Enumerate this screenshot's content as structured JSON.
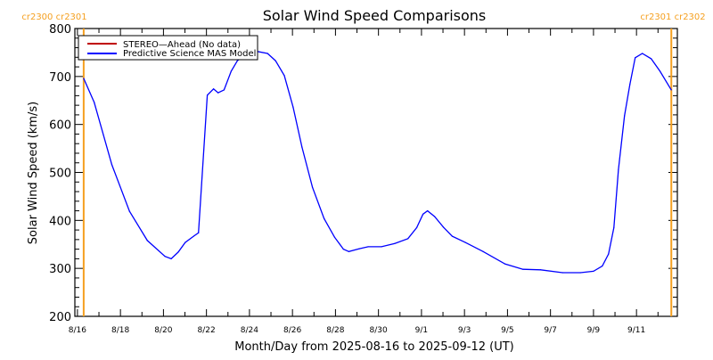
{
  "chart_data": {
    "type": "line",
    "title": "Solar Wind Speed Comparisons",
    "xlabel": "Month/Day from 2025-08-16 to 2025-09-12 (UT)",
    "ylabel": "Solar Wind Speed (km/s)",
    "x_units": "days since 2025-08-16 00:00 UT",
    "xlim": [
      -0.12,
      27.9
    ],
    "ylim": [
      200,
      800
    ],
    "y_ticks": [
      200,
      300,
      400,
      500,
      600,
      700,
      800
    ],
    "y_tick_labels": [
      "200",
      "300",
      "400",
      "500",
      "600",
      "700",
      "800"
    ],
    "x_ticks": [
      0,
      2,
      4,
      6,
      8,
      10,
      12,
      14,
      16,
      18,
      20,
      22,
      24,
      26
    ],
    "x_tick_labels": [
      "8/16",
      "8/18",
      "8/20",
      "8/22",
      "8/24",
      "8/26",
      "8/28",
      "8/30",
      "9/1",
      "9/3",
      "9/5",
      "9/7",
      "9/9",
      "9/11"
    ],
    "legend": {
      "placement": "top-left",
      "entries": [
        {
          "label": "STEREO—Ahead (No data)",
          "color": "#c00000"
        },
        {
          "label": "Predictive Science MAS Model",
          "color": "#0000ff"
        }
      ]
    },
    "carrington_markers": [
      {
        "x": 0.29,
        "label": "cr2300 cr2301",
        "color": "#f5a020"
      },
      {
        "x": 27.62,
        "label": "cr2301 cr2302",
        "color": "#f5a020"
      }
    ],
    "series": [
      {
        "name": "Predictive Science MAS Model",
        "color": "#0000ff",
        "x": [
          0.29,
          0.78,
          1.6,
          2.42,
          3.25,
          4.07,
          4.36,
          4.69,
          5.01,
          5.43,
          5.63,
          6.04,
          6.33,
          6.54,
          6.82,
          7.15,
          7.44,
          7.77,
          8.38,
          8.84,
          9.21,
          9.62,
          10.03,
          10.44,
          10.93,
          11.47,
          11.96,
          12.37,
          12.62,
          13.11,
          13.52,
          14.14,
          14.76,
          15.37,
          15.78,
          16.07,
          16.28,
          16.61,
          17.02,
          17.43,
          18.04,
          18.87,
          19.89,
          20.72,
          21.54,
          22.56,
          23.39,
          24.0,
          24.41,
          24.7,
          24.95,
          25.16,
          25.44,
          25.69,
          25.94,
          26.27,
          26.68,
          27.09,
          27.62
        ],
        "y": [
          696,
          646,
          516,
          419,
          358,
          325,
          320,
          334,
          354,
          368,
          374,
          661,
          674,
          666,
          672,
          711,
          733,
          744,
          752,
          748,
          733,
          702,
          636,
          553,
          469,
          404,
          365,
          340,
          335,
          341,
          345,
          345,
          352,
          362,
          385,
          413,
          420,
          408,
          386,
          367,
          354,
          335,
          309,
          298,
          297,
          291,
          291,
          294,
          305,
          330,
          385,
          506,
          618,
          683,
          739,
          748,
          737,
          711,
          672
        ]
      },
      {
        "name": "STEREO—Ahead (No data)",
        "color": "#c00000",
        "x": [],
        "y": []
      }
    ]
  }
}
